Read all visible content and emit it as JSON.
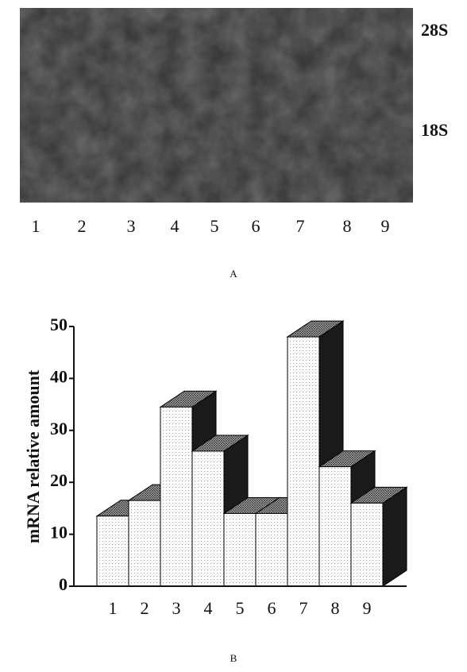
{
  "gel": {
    "bands": [
      "28S",
      "18S"
    ],
    "lanes": [
      "1",
      "2",
      "3",
      "4",
      "5",
      "6",
      "7",
      "8",
      "9"
    ],
    "panel_label": "A"
  },
  "chart_data": {
    "type": "bar3d",
    "ylabel": "mRNA  relative amount",
    "categories": [
      "1",
      "2",
      "3",
      "4",
      "5",
      "6",
      "7",
      "8",
      "9"
    ],
    "values": [
      13.5,
      16.5,
      34.5,
      26,
      14,
      14,
      48,
      23,
      16
    ],
    "ylim": [
      0,
      50
    ],
    "yticks": [
      0,
      10,
      20,
      30,
      40,
      50
    ],
    "panel_label": "B"
  }
}
